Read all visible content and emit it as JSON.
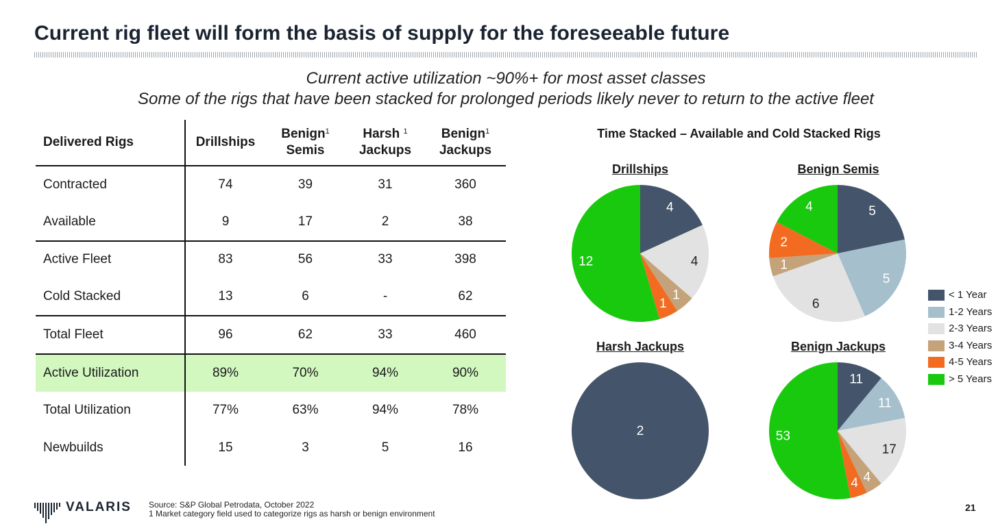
{
  "slide": {
    "title": "Current rig fleet will form the basis of supply for the foreseeable future",
    "subtitle_line1": "Current active utilization ~90%+ for most asset classes",
    "subtitle_line2": "Some of the rigs that have been stacked for prolonged periods likely never to return to the active fleet",
    "page_number": "21"
  },
  "table": {
    "corner_label": "Delivered Rigs",
    "columns": [
      {
        "line1": "Drillships",
        "line2": "",
        "sup": ""
      },
      {
        "line1": "Benign",
        "line2": "Semis",
        "sup": "1"
      },
      {
        "line1": "Harsh",
        "line2": "Jackups",
        "sup": "1"
      },
      {
        "line1": "Benign",
        "line2": "Jackups",
        "sup": "1"
      }
    ],
    "rows": [
      {
        "label": "Contracted",
        "values": [
          "74",
          "39",
          "31",
          "360"
        ]
      },
      {
        "label": "Available",
        "values": [
          "9",
          "17",
          "2",
          "38"
        ]
      },
      {
        "label": "Active Fleet",
        "values": [
          "83",
          "56",
          "33",
          "398"
        ]
      },
      {
        "label": "Cold Stacked",
        "values": [
          "13",
          "6",
          "-",
          "62"
        ]
      },
      {
        "label": "Total Fleet",
        "values": [
          "96",
          "62",
          "33",
          "460"
        ]
      },
      {
        "label": "Active Utilization",
        "values": [
          "89%",
          "70%",
          "94%",
          "90%"
        ]
      },
      {
        "label": "Total Utilization",
        "values": [
          "77%",
          "63%",
          "94%",
          "78%"
        ]
      },
      {
        "label": "Newbuilds",
        "values": [
          "15",
          "3",
          "5",
          "16"
        ]
      }
    ]
  },
  "chart_data": {
    "type": "pie",
    "title": "Time Stacked – Available and Cold Stacked Rigs",
    "legend": [
      "< 1 Year",
      "1-2 Years",
      "2-3 Years",
      "3-4 Years",
      "4-5 Years",
      "> 5 Years"
    ],
    "colors": [
      "#44546a",
      "#a5bfcc",
      "#e2e2e2",
      "#c4a37a",
      "#f26b21",
      "#18c90e"
    ],
    "pies": [
      {
        "name": "Drillships",
        "values": [
          4,
          0,
          4,
          1,
          1,
          12
        ]
      },
      {
        "name": "Benign Semis",
        "values": [
          5,
          5,
          6,
          1,
          2,
          4
        ]
      },
      {
        "name": "Harsh Jackups",
        "values": [
          2,
          0,
          0,
          0,
          0,
          0
        ]
      },
      {
        "name": "Benign Jackups",
        "values": [
          11,
          11,
          17,
          4,
          4,
          53
        ]
      }
    ]
  },
  "footer": {
    "logo_text": "VALARIS",
    "source_line1": "Source: S&P Global Petrodata, October 2022",
    "source_line2": "1 Market category field used to categorize rigs as harsh or benign environment"
  }
}
